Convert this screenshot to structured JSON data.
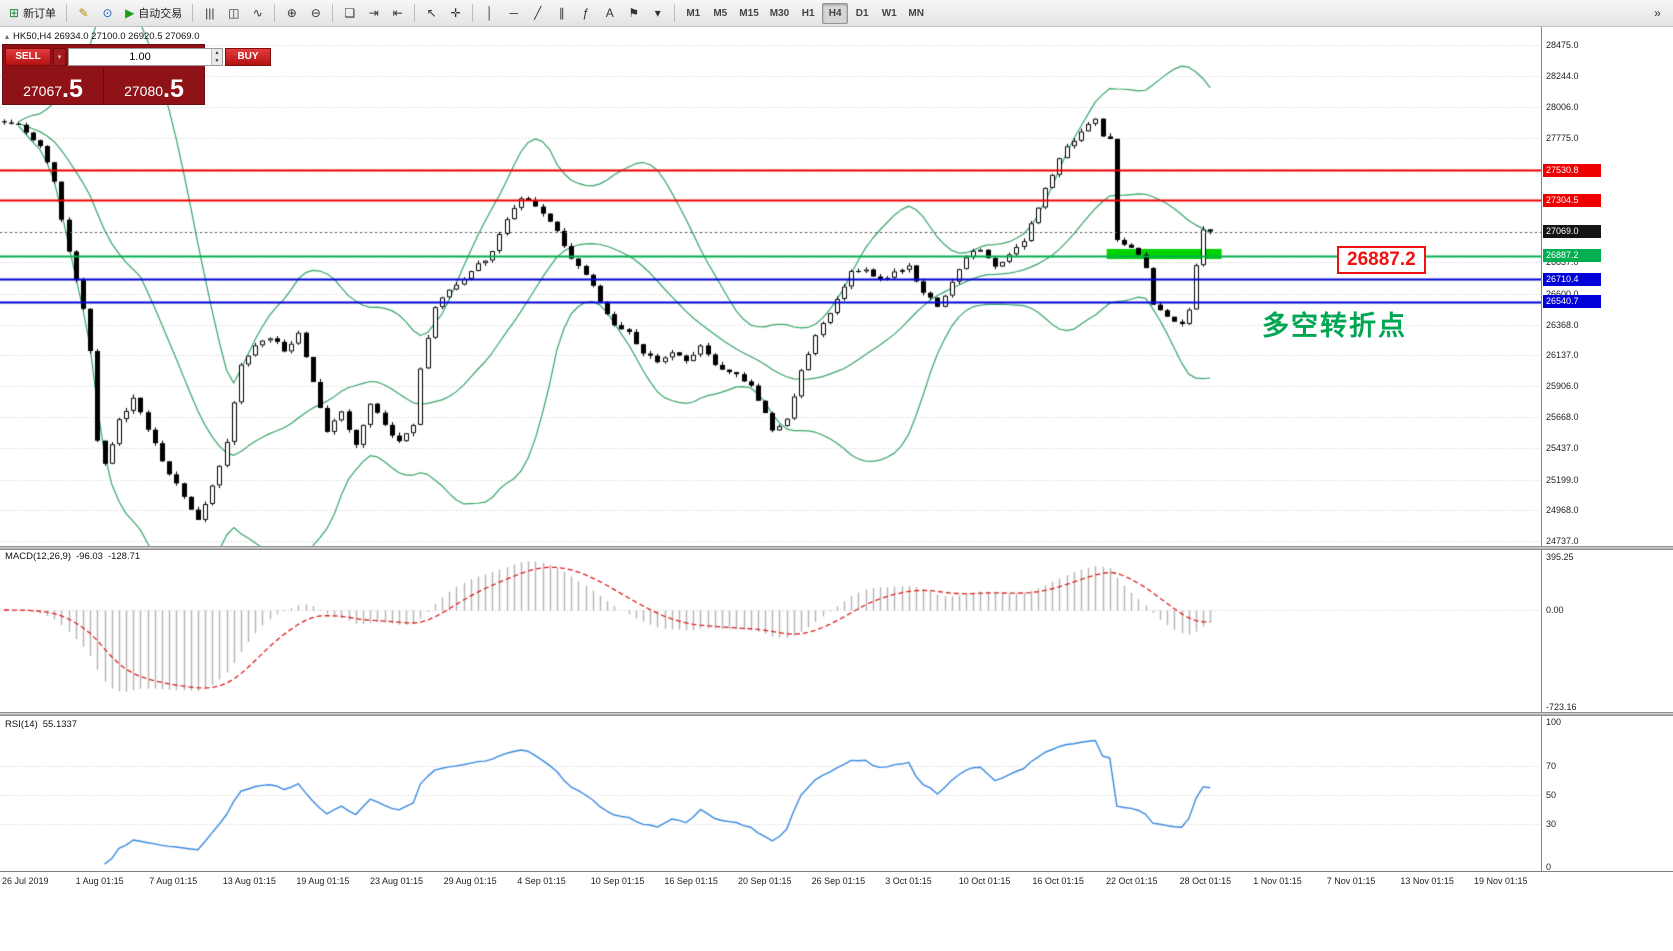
{
  "icons": {
    "caret": "▴",
    "dropdown": "▾",
    "spin_up": "▲",
    "spin_down": "▼"
  },
  "toolbar": {
    "groups": [
      {
        "name": "orders",
        "items": [
          {
            "name": "new-order-button",
            "glyph": "⊞",
            "color": "#1f8a3b",
            "label": "新订单"
          }
        ]
      },
      {
        "name": "editors",
        "items": [
          {
            "name": "metaeditor-button",
            "glyph": "✎",
            "color": "#b8860b"
          },
          {
            "name": "market-watch-button",
            "glyph": "⊙",
            "color": "#1e66c7"
          },
          {
            "name": "auto-trading-button",
            "glyph": "▶",
            "color": "#18a018",
            "label": "自动交易"
          }
        ]
      },
      {
        "name": "chart-types",
        "items": [
          {
            "name": "bar-chart-button",
            "glyph": "|||"
          },
          {
            "name": "candlestick-chart-button",
            "glyph": "◫"
          },
          {
            "name": "line-chart-button",
            "glyph": "∿"
          }
        ]
      },
      {
        "name": "zoom",
        "items": [
          {
            "name": "zoom-in-button",
            "glyph": "⊕"
          },
          {
            "name": "zoom-out-button",
            "glyph": "⊖"
          }
        ]
      },
      {
        "name": "windows",
        "items": [
          {
            "name": "tile-windows-button",
            "glyph": "❏"
          },
          {
            "name": "auto-scroll-button",
            "glyph": "⇥"
          },
          {
            "name": "chart-shift-button",
            "glyph": "⇤"
          }
        ]
      },
      {
        "name": "cursor-tools",
        "items": [
          {
            "name": "cursor-button",
            "glyph": "↖"
          },
          {
            "name": "crosshair-button",
            "glyph": "✛"
          }
        ]
      },
      {
        "name": "draw-tools",
        "items": [
          {
            "name": "vertical-line-button",
            "glyph": "│"
          },
          {
            "name": "horizontal-line-button",
            "glyph": "─"
          },
          {
            "name": "trendline-button",
            "glyph": "╱"
          },
          {
            "name": "channel-button",
            "glyph": "∥"
          },
          {
            "name": "fibonacci-button",
            "glyph": "ƒ"
          },
          {
            "name": "text-button",
            "glyph": "A"
          },
          {
            "name": "label-button",
            "glyph": "⚑"
          },
          {
            "name": "shapes-button",
            "glyph": "▾"
          }
        ]
      },
      {
        "name": "timeframes",
        "items": [
          {
            "name": "timeframe-m1-button",
            "label": "M1"
          },
          {
            "name": "timeframe-m5-button",
            "label": "M5"
          },
          {
            "name": "timeframe-m15-button",
            "label": "M15"
          },
          {
            "name": "timeframe-m30-button",
            "label": "M30"
          },
          {
            "name": "timeframe-h1-button",
            "label": "H1"
          },
          {
            "name": "timeframe-h4-button",
            "label": "H4",
            "selected": true
          },
          {
            "name": "timeframe-d1-button",
            "label": "D1"
          },
          {
            "name": "timeframe-w1-button",
            "label": "W1"
          },
          {
            "name": "timeframe-mn-button",
            "label": "MN"
          }
        ]
      },
      {
        "name": "overflow",
        "items": [
          {
            "name": "more-tools-button",
            "glyph": "»"
          }
        ]
      }
    ]
  },
  "symbol_header": {
    "text": "HK50,H4 26934.0 27100.0 26920.5 27069.0"
  },
  "trade_panel": {
    "sell_label": "SELL",
    "buy_label": "BUY",
    "volume": "1.00",
    "sell_price_main": "27067",
    "sell_price_frac": ".5",
    "buy_price_main": "27080",
    "buy_price_frac": ".5"
  },
  "annotations": {
    "turning_point": "多空转折点",
    "price_box": "26887.2"
  },
  "indicators": {
    "macd": {
      "title": "MACD(12,26,9)",
      "value1": "-96.03",
      "value2": "-128.71",
      "axis": [
        "395.25",
        "0.00",
        "-723.16"
      ]
    },
    "rsi": {
      "title": "RSI(14)",
      "value": "55.1337",
      "axis": [
        "100",
        "70",
        "50",
        "30",
        "0"
      ],
      "levels": [
        70,
        50,
        30
      ],
      "period": 14
    }
  },
  "chart_data": {
    "type": "candlestick",
    "symbol": "HK50",
    "timeframe": "H4",
    "ohlc": {
      "open": 26934.0,
      "high": 27100.0,
      "low": 26920.5,
      "close": 27069.0
    },
    "price_gridlines": [
      28475.0,
      28244.0,
      28006.0,
      27775.0,
      27537.0,
      27306.0,
      27069.0,
      26837.0,
      26600.0,
      26368.0,
      26137.0,
      25906.0,
      25668.0,
      25437.0,
      25199.0,
      24968.0,
      24737.0
    ],
    "hlines": [
      {
        "value": 27530.8,
        "color": "#ee0000",
        "width": 2
      },
      {
        "value": 27304.5,
        "color": "#ee0000",
        "width": 2
      },
      {
        "value": 26887.2,
        "color": "#00b050",
        "width": 2
      },
      {
        "value": 26710.4,
        "color": "#0000d8",
        "width": 2
      },
      {
        "value": 26540.7,
        "color": "#0000d8",
        "width": 2
      },
      {
        "value": 27069.0,
        "color": "#555555",
        "width": 1,
        "dashed": true
      }
    ],
    "axis_badges": [
      {
        "value": 27530.8,
        "label": "27530.8",
        "color": "#ee0000"
      },
      {
        "value": 27304.5,
        "label": "27304.5",
        "color": "#ee0000"
      },
      {
        "value": 27069.0,
        "label": "27069.0",
        "color": "#141414"
      },
      {
        "value": 26887.2,
        "label": "26887.2",
        "color": "#00b050"
      },
      {
        "value": 26710.4,
        "label": "26710.4",
        "color": "#0000d8"
      },
      {
        "value": 26540.7,
        "label": "26540.7",
        "color": "#0000d8"
      }
    ],
    "highlight_rect": {
      "from_index": 154,
      "to_index": 170,
      "price_top": 26938,
      "price_bottom": 26862,
      "color": "#00d400"
    },
    "bollinger": {
      "period": 20,
      "deviation": 2,
      "color": "#3aa66a"
    },
    "macd": {
      "fast": 12,
      "slow": 26,
      "signal": 9
    },
    "macd_axis": {
      "max": 395.25,
      "min": -723.16
    },
    "candles": {
      "count": 169,
      "seed": 20191119,
      "noise": 40,
      "anchors": [
        [
          0,
          27900
        ],
        [
          3,
          27860
        ],
        [
          6,
          27700
        ],
        [
          8,
          27450
        ],
        [
          10,
          26900
        ],
        [
          12,
          26500
        ],
        [
          13,
          26150
        ],
        [
          14,
          25500
        ],
        [
          15,
          25300
        ],
        [
          17,
          25650
        ],
        [
          19,
          25820
        ],
        [
          21,
          25560
        ],
        [
          23,
          25350
        ],
        [
          26,
          25060
        ],
        [
          28,
          24880
        ],
        [
          30,
          25150
        ],
        [
          32,
          25480
        ],
        [
          34,
          26050
        ],
        [
          36,
          26200
        ],
        [
          38,
          26260
        ],
        [
          40,
          26180
        ],
        [
          42,
          26300
        ],
        [
          44,
          25950
        ],
        [
          46,
          25560
        ],
        [
          48,
          25700
        ],
        [
          50,
          25480
        ],
        [
          52,
          25760
        ],
        [
          54,
          25620
        ],
        [
          56,
          25480
        ],
        [
          58,
          25620
        ],
        [
          59,
          26050
        ],
        [
          61,
          26500
        ],
        [
          63,
          26650
        ],
        [
          65,
          26720
        ],
        [
          67,
          26820
        ],
        [
          69,
          26920
        ],
        [
          71,
          27150
        ],
        [
          73,
          27330
        ],
        [
          75,
          27260
        ],
        [
          77,
          27160
        ],
        [
          80,
          26870
        ],
        [
          82,
          26760
        ],
        [
          84,
          26560
        ],
        [
          86,
          26360
        ],
        [
          88,
          26300
        ],
        [
          90,
          26160
        ],
        [
          92,
          26100
        ],
        [
          94,
          26160
        ],
        [
          96,
          26100
        ],
        [
          98,
          26210
        ],
        [
          100,
          26060
        ],
        [
          103,
          26000
        ],
        [
          105,
          25900
        ],
        [
          107,
          25700
        ],
        [
          108,
          25560
        ],
        [
          110,
          25660
        ],
        [
          112,
          26010
        ],
        [
          114,
          26300
        ],
        [
          117,
          26560
        ],
        [
          119,
          26760
        ],
        [
          121,
          26800
        ],
        [
          123,
          26700
        ],
        [
          125,
          26760
        ],
        [
          127,
          26810
        ],
        [
          129,
          26610
        ],
        [
          131,
          26500
        ],
        [
          133,
          26700
        ],
        [
          135,
          26860
        ],
        [
          137,
          26950
        ],
        [
          139,
          26800
        ],
        [
          141,
          26900
        ],
        [
          143,
          27010
        ],
        [
          145,
          27260
        ],
        [
          147,
          27510
        ],
        [
          149,
          27700
        ],
        [
          151,
          27810
        ],
        [
          153,
          27930
        ],
        [
          154,
          27800
        ],
        [
          155,
          27760
        ],
        [
          156,
          27000
        ],
        [
          158,
          26950
        ],
        [
          160,
          26800
        ],
        [
          161,
          26520
        ],
        [
          163,
          26420
        ],
        [
          165,
          26360
        ],
        [
          166,
          26500
        ],
        [
          167,
          26820
        ],
        [
          168,
          27069
        ],
        [
          169,
          27069
        ]
      ]
    },
    "time_labels": [
      "26 Jul 2019",
      "1 Aug 01:15",
      "7 Aug 01:15",
      "13 Aug 01:15",
      "19 Aug 01:15",
      "23 Aug 01:15",
      "29 Aug 01:15",
      "4 Sep 01:15",
      "10 Sep 01:15",
      "16 Sep 01:15",
      "20 Sep 01:15",
      "26 Sep 01:15",
      "3 Oct 01:15",
      "10 Oct 01:15",
      "16 Oct 01:15",
      "22 Oct 01:15",
      "28 Oct 01:15",
      "1 Nov 01:15",
      "7 Nov 01:15",
      "13 Nov 01:15",
      "19 Nov 01:15"
    ]
  }
}
